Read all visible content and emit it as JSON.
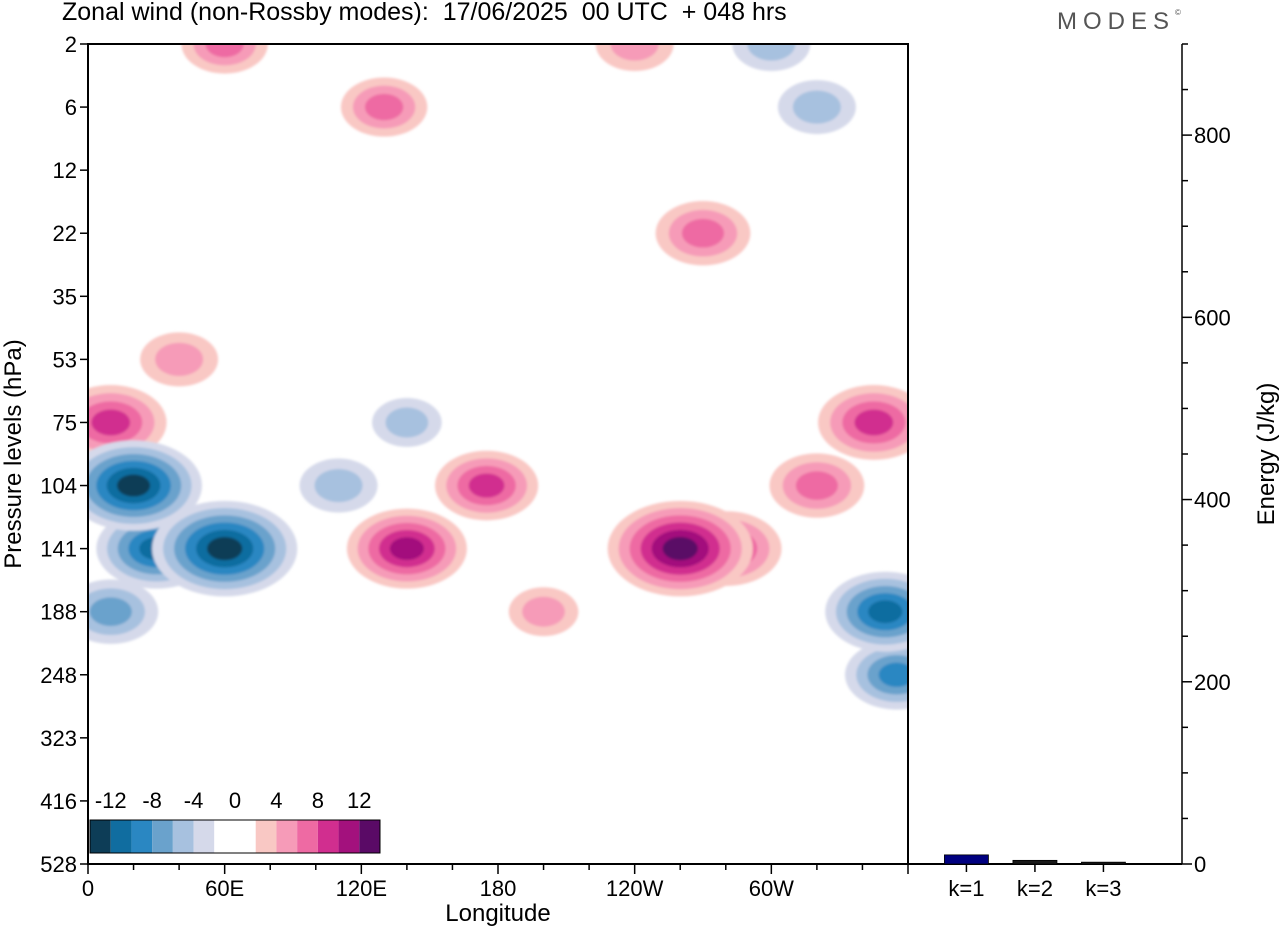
{
  "header": {
    "title": "Zonal wind (non-Rossby modes):  17/06/2025  00 UTC  + 048 hrs",
    "brand": "MODES",
    "brand_mark": "©"
  },
  "chart_data": [
    {
      "type": "heatmap",
      "title": "Zonal wind (non-Rossby modes):  17/06/2025  00 UTC  + 048 hrs",
      "xlabel": "Longitude",
      "ylabel": "Pressure levels (hPa)",
      "x_ticks": [
        "0",
        "60E",
        "120E",
        "180",
        "120W",
        "60W"
      ],
      "x_tick_values": [
        0,
        60,
        120,
        180,
        240,
        300
      ],
      "xlim": [
        0,
        360
      ],
      "y_ticks": [
        "2",
        "6",
        "12",
        "22",
        "35",
        "53",
        "75",
        "104",
        "141",
        "188",
        "248",
        "323",
        "416",
        "528"
      ],
      "colorbar": {
        "labels": [
          "-12",
          "-8",
          "-4",
          "0",
          "4",
          "8",
          "12"
        ],
        "levels": [
          -14,
          -12,
          -10,
          -8,
          -6,
          -4,
          -2,
          0,
          2,
          4,
          6,
          8,
          10,
          12,
          14
        ],
        "colors": [
          "#0d3d57",
          "#106da0",
          "#2a87c2",
          "#6aa2cc",
          "#a7c1df",
          "#d5d9ea",
          "#ffffff",
          "#ffffff",
          "#f9c8c4",
          "#f69bb8",
          "#ee6aa3",
          "#d12e8f",
          "#a3117d",
          "#5a0a66"
        ]
      },
      "field_features": [
        {
          "lon": 60,
          "level": "141",
          "value": -13
        },
        {
          "lon": 20,
          "level": "104",
          "value": -12
        },
        {
          "lon": 30,
          "level": "141",
          "value": -10
        },
        {
          "lon": 10,
          "level": "188",
          "value": -7
        },
        {
          "lon": 110,
          "level": "104",
          "value": -5
        },
        {
          "lon": 140,
          "level": "75",
          "value": -4
        },
        {
          "lon": 350,
          "level": "188",
          "value": -10
        },
        {
          "lon": 355,
          "level": "248",
          "value": -8
        },
        {
          "lon": 10,
          "level": "75",
          "value": 9
        },
        {
          "lon": 40,
          "level": "53",
          "value": 5
        },
        {
          "lon": 140,
          "level": "141",
          "value": 10
        },
        {
          "lon": 175,
          "level": "104",
          "value": 8
        },
        {
          "lon": 200,
          "level": "188",
          "value": 4
        },
        {
          "lon": 260,
          "level": "141",
          "value": 13
        },
        {
          "lon": 280,
          "level": "141",
          "value": 9
        },
        {
          "lon": 320,
          "level": "104",
          "value": 7
        },
        {
          "lon": 345,
          "level": "75",
          "value": 9
        },
        {
          "lon": 270,
          "level": "22",
          "value": 7
        },
        {
          "lon": 130,
          "level": "6",
          "value": 6
        },
        {
          "lon": 60,
          "level": "2",
          "value": 6
        },
        {
          "lon": 240,
          "level": "2",
          "value": 5
        },
        {
          "lon": 300,
          "level": "2",
          "value": -5
        },
        {
          "lon": 320,
          "level": "6",
          "value": -5
        }
      ]
    },
    {
      "type": "bar",
      "categories": [
        "k=1",
        "k=2",
        "k=3"
      ],
      "values": [
        10,
        4,
        2
      ],
      "ylabel": "Energy (J/kg)",
      "ylim": [
        0,
        900
      ],
      "y_ticks": [
        0,
        200,
        400,
        600,
        800
      ],
      "colors": [
        "#000080",
        "#1a1a1a",
        "#1a1a1a"
      ]
    }
  ]
}
